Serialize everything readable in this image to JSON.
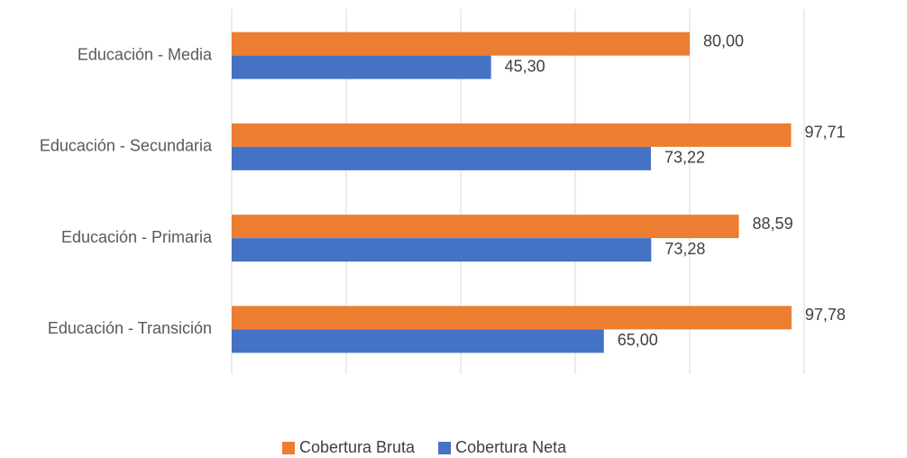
{
  "chart_data": {
    "type": "hbar",
    "categories": [
      "Educación - Media",
      "Educación - Secundaria",
      "Educación - Primaria",
      "Educación - Transición"
    ],
    "series": [
      {
        "name": "Cobertura Bruta",
        "color": "#ed7d31",
        "values": [
          80.0,
          97.71,
          88.59,
          97.78
        ],
        "value_labels": [
          "80,00",
          "97,71",
          "88,59",
          "97,78"
        ]
      },
      {
        "name": "Cobertura Neta",
        "color": "#4472c4",
        "values": [
          45.3,
          73.22,
          73.28,
          65.0
        ],
        "value_labels": [
          "45,30",
          "73,22",
          "73,28",
          "65,00"
        ]
      }
    ],
    "xlim": [
      0,
      100
    ],
    "xticks": [
      0,
      20,
      40,
      60,
      80,
      100
    ],
    "grid": true,
    "legend": "bottom"
  }
}
